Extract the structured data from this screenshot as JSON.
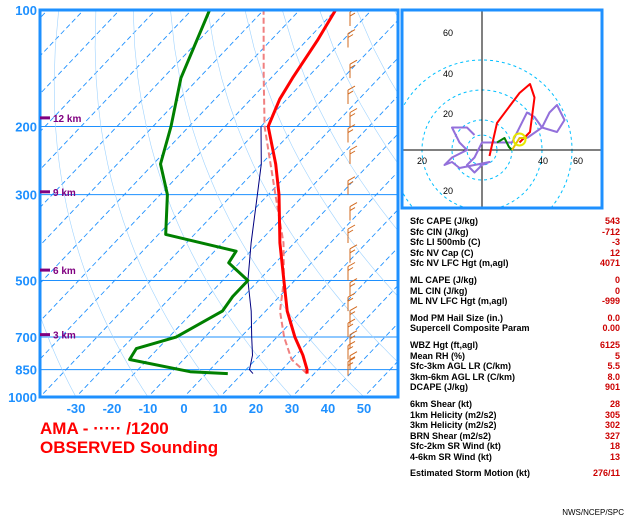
{
  "title": {
    "line1": "AMA - ····· /1200",
    "line2": "OBSERVED Sounding"
  },
  "credit": "NWS/NCEP/SPC",
  "colors": {
    "frame": "#1e90ff",
    "temp": "#ff0000",
    "dewpoint": "#008000",
    "parcel": "#f08080",
    "wetbulb": "#000080",
    "hodo": "#9370db",
    "label": "#cc0000",
    "heights": "#800080"
  },
  "params": [
    {
      "label": "Sfc CAPE (J/kg)",
      "value": "543"
    },
    {
      "label": "Sfc CIN (J/kg)",
      "value": "-712"
    },
    {
      "label": "Sfc LI 500mb (C)",
      "value": "-3"
    },
    {
      "label": "Sfc NV Cap (C)",
      "value": "12"
    },
    {
      "label": "Sfc NV LFC Hgt (m,agl)",
      "value": "4071"
    },
    {
      "label": "",
      "value": ""
    },
    {
      "label": "ML CAPE (J/kg)",
      "value": "0"
    },
    {
      "label": "ML CIN (J/kg)",
      "value": "0"
    },
    {
      "label": "ML NV LFC Hgt (m,agl)",
      "value": "-999"
    },
    {
      "label": "",
      "value": ""
    },
    {
      "label": "Mod PM Hail Size (in.)",
      "value": "0.0"
    },
    {
      "label": "Supercell Composite Param",
      "value": "0.00"
    },
    {
      "label": "",
      "value": ""
    },
    {
      "label": "WBZ Hgt (ft,agl)",
      "value": "6125"
    },
    {
      "label": "Mean RH (%)",
      "value": "5"
    },
    {
      "label": "Sfc-3km AGL LR (C/km)",
      "value": "5.5"
    },
    {
      "label": "3km-6km AGL LR (C/km)",
      "value": "8.0"
    },
    {
      "label": "DCAPE (J/kg)",
      "value": "901"
    },
    {
      "label": "",
      "value": ""
    },
    {
      "label": "6km Shear (kt)",
      "value": "28"
    },
    {
      "label": "1km Helicity (m2/s2)",
      "value": "305"
    },
    {
      "label": "3km Helicity (m2/s2)",
      "value": "302"
    },
    {
      "label": "BRN Shear (m2/s2)",
      "value": "327"
    },
    {
      "label": "Sfc-2km SR Wind (kt)",
      "value": "18"
    },
    {
      "label": "4-6km SR Wind (kt)",
      "value": "13"
    },
    {
      "label": "",
      "value": ""
    },
    {
      "label": "Estimated Storm Motion (kt)",
      "value": "276/11"
    }
  ],
  "chart_data": [
    {
      "type": "skew-t",
      "y_scale": "log-pressure",
      "pressure_ticks": [
        100,
        200,
        300,
        500,
        700,
        850,
        1000
      ],
      "temp_ticks": [
        -30,
        -20,
        -10,
        0,
        10,
        20,
        30,
        40,
        50
      ],
      "xlim": [
        -40,
        55
      ],
      "ylim": [
        1000,
        100
      ],
      "height_labels": [
        {
          "label": "12 km",
          "p": 190
        },
        {
          "label": "9 km",
          "p": 295
        },
        {
          "label": "6 km",
          "p": 470
        },
        {
          "label": "3 km",
          "p": 690
        }
      ],
      "temperature": [
        {
          "p": 870,
          "t": 28
        },
        {
          "p": 850,
          "t": 27
        },
        {
          "p": 780,
          "t": 22
        },
        {
          "p": 700,
          "t": 15
        },
        {
          "p": 600,
          "t": 6
        },
        {
          "p": 500,
          "t": -3
        },
        {
          "p": 400,
          "t": -14
        },
        {
          "p": 300,
          "t": -27
        },
        {
          "p": 250,
          "t": -36
        },
        {
          "p": 200,
          "t": -48
        },
        {
          "p": 170,
          "t": -52
        },
        {
          "p": 150,
          "t": -54
        },
        {
          "p": 120,
          "t": -57
        },
        {
          "p": 100,
          "t": -60
        }
      ],
      "dewpoint": [
        {
          "p": 870,
          "t": 6
        },
        {
          "p": 860,
          "t": -5
        },
        {
          "p": 800,
          "t": -25
        },
        {
          "p": 750,
          "t": -26
        },
        {
          "p": 700,
          "t": -18
        },
        {
          "p": 600,
          "t": -12
        },
        {
          "p": 550,
          "t": -13
        },
        {
          "p": 500,
          "t": -13
        },
        {
          "p": 450,
          "t": -23
        },
        {
          "p": 420,
          "t": -24
        },
        {
          "p": 380,
          "t": -48
        },
        {
          "p": 300,
          "t": -58
        },
        {
          "p": 250,
          "t": -68
        },
        {
          "p": 200,
          "t": -75
        },
        {
          "p": 150,
          "t": -85
        },
        {
          "p": 100,
          "t": -95
        }
      ],
      "wetbulb": [
        {
          "p": 870,
          "t": 13
        },
        {
          "p": 850,
          "t": 11
        },
        {
          "p": 780,
          "t": 8
        },
        {
          "p": 700,
          "t": 3
        },
        {
          "p": 600,
          "t": -4
        },
        {
          "p": 500,
          "t": -13
        },
        {
          "p": 400,
          "t": -22
        },
        {
          "p": 300,
          "t": -33
        },
        {
          "p": 250,
          "t": -40
        },
        {
          "p": 200,
          "t": -50
        }
      ],
      "parcel": [
        {
          "p": 870,
          "t": 28
        },
        {
          "p": 800,
          "t": 20
        },
        {
          "p": 700,
          "t": 12
        },
        {
          "p": 600,
          "t": 4
        },
        {
          "p": 500,
          "t": -3
        },
        {
          "p": 400,
          "t": -13
        },
        {
          "p": 300,
          "t": -28
        },
        {
          "p": 200,
          "t": -49
        },
        {
          "p": 150,
          "t": -62
        },
        {
          "p": 100,
          "t": -80
        }
      ],
      "wind_barbs_p": [
        880,
        850,
        800,
        750,
        700,
        650,
        600,
        550,
        500,
        450,
        400,
        350,
        300,
        250,
        220,
        200,
        175,
        150,
        125,
        110,
        100
      ]
    },
    {
      "type": "hodograph",
      "rings_kt": [
        20,
        40,
        60
      ],
      "axis_labels": [
        "20",
        "40",
        "60"
      ],
      "trace_red": [
        {
          "u": 5,
          "v": -4
        },
        {
          "u": 10,
          "v": 18
        },
        {
          "u": 25,
          "v": 38
        },
        {
          "u": 32,
          "v": 44
        },
        {
          "u": 35,
          "v": 35
        },
        {
          "u": 32,
          "v": 12
        },
        {
          "u": 25,
          "v": 5
        }
      ],
      "trace_green": [
        {
          "u": 10,
          "v": 5
        },
        {
          "u": 15,
          "v": 8
        },
        {
          "u": 18,
          "v": 2
        },
        {
          "u": 20,
          "v": 0
        }
      ],
      "trace_yellow": [
        {
          "u": 20,
          "v": 0
        },
        {
          "u": 25,
          "v": 8
        },
        {
          "u": 30,
          "v": 8
        }
      ],
      "trace_purple": [
        {
          "u": 30,
          "v": 8
        },
        {
          "u": 40,
          "v": 15
        },
        {
          "u": 45,
          "v": 25
        },
        {
          "u": 50,
          "v": 30
        },
        {
          "u": 55,
          "v": 20
        },
        {
          "u": 50,
          "v": 12
        },
        {
          "u": 40,
          "v": 15
        },
        {
          "u": 35,
          "v": 22
        },
        {
          "u": 30,
          "v": 25
        },
        {
          "u": 20,
          "v": 5
        },
        {
          "u": 10,
          "v": 5
        },
        {
          "u": 0,
          "v": 5
        },
        {
          "u": -5,
          "v": -5
        },
        {
          "u": -10,
          "v": -10
        },
        {
          "u": -5,
          "v": -15
        },
        {
          "u": 0,
          "v": -10
        },
        {
          "u": 5,
          "v": -8
        },
        {
          "u": -15,
          "v": -12
        },
        {
          "u": -20,
          "v": -8
        },
        {
          "u": -25,
          "v": -10
        },
        {
          "u": -20,
          "v": -5
        },
        {
          "u": -10,
          "v": 0
        },
        {
          "u": -15,
          "v": 5
        },
        {
          "u": -20,
          "v": 15
        },
        {
          "u": -10,
          "v": 15
        },
        {
          "u": -5,
          "v": 10
        }
      ],
      "storm_motion": {
        "u": 25,
        "v": 7
      }
    }
  ]
}
